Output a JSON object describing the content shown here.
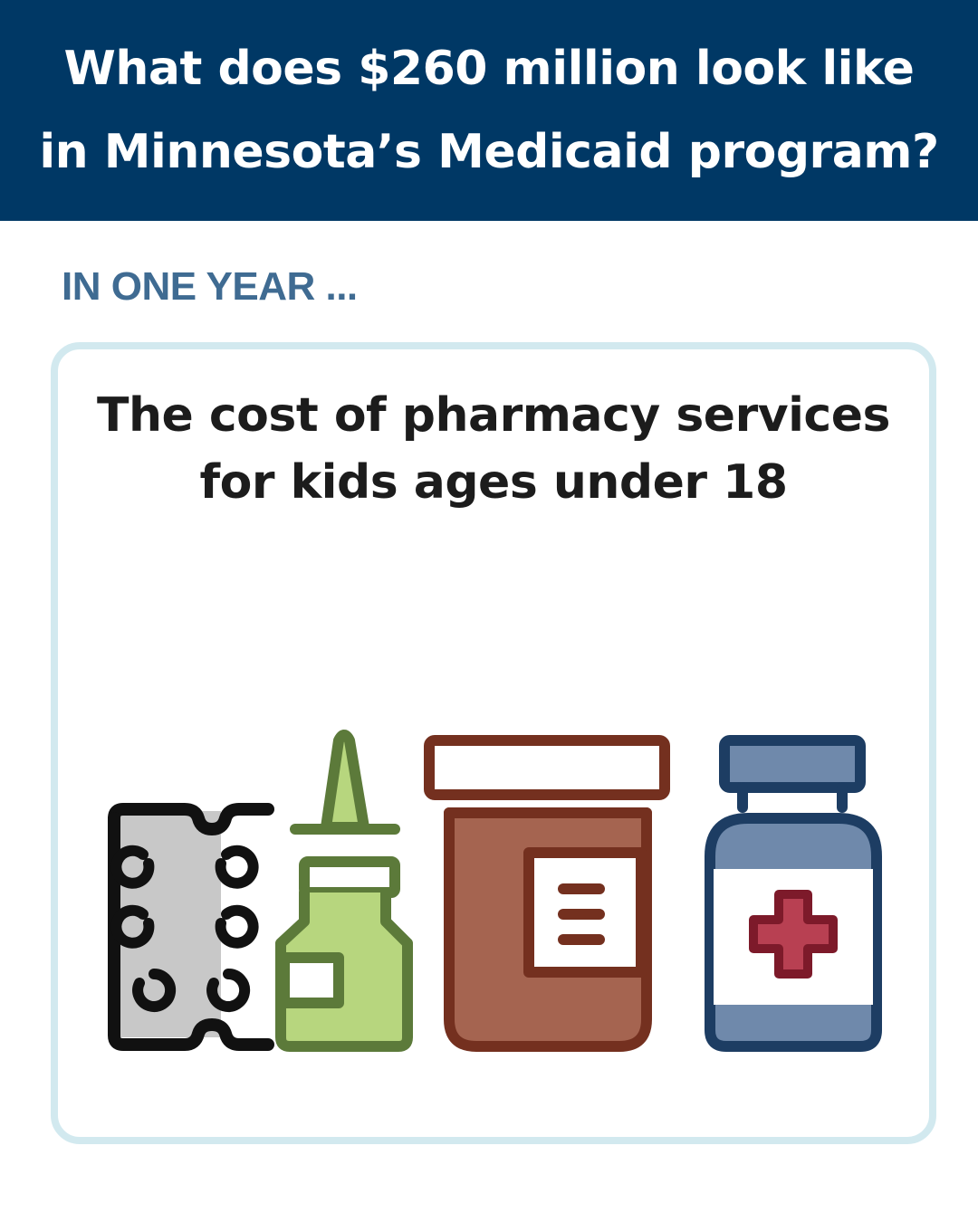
{
  "header": {
    "title_line1": "What does $260 million look like",
    "title_line2": "in Minnesota’s Medicaid program?"
  },
  "subheading": "IN ONE YEAR ...",
  "card": {
    "title_line1": "The cost of pharmacy services",
    "title_line2": "for kids ages under 18",
    "icons": [
      "pill-blister-pack-icon",
      "nasal-spray-bottle-icon",
      "medicine-jar-icon",
      "medicine-bottle-icon"
    ]
  },
  "colors": {
    "header_bg": "#003865",
    "subheading": "#3f6b92",
    "card_border": "#d2e9ef",
    "blister": "#c8c8c8",
    "spray": "#b7d67e",
    "spray_stroke": "#5c7a3a",
    "jar": "#a56450",
    "jar_stroke": "#74301f",
    "bottle": "#6f89ab",
    "bottle_stroke": "#1d3d63",
    "cross": "#b84052",
    "cross_stroke": "#7d1a2a"
  }
}
